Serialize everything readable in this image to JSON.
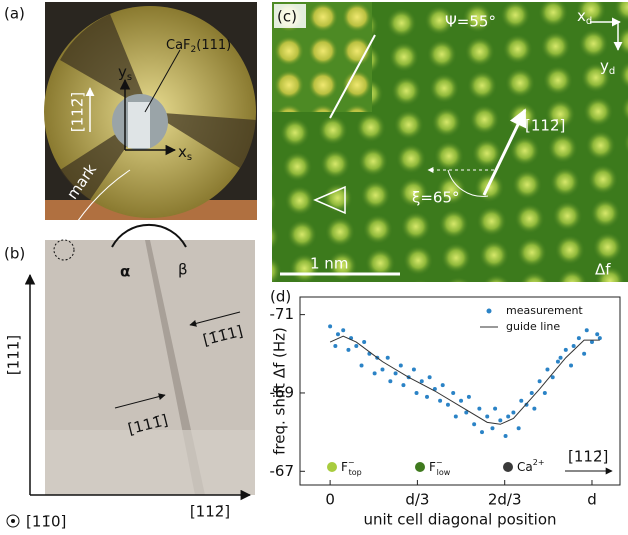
{
  "panel_a": {
    "label": "(a)",
    "sample": {
      "main": "CaF",
      "sub": "2",
      "rest": "(111)"
    },
    "y_axis": {
      "main": "y",
      "sub": "s"
    },
    "x_axis": {
      "main": "x",
      "sub": "s"
    },
    "direction": "[112̄]",
    "mark": "mark"
  },
  "panel_b": {
    "label": "(b)",
    "angle_alpha": "α",
    "angle_beta": "β",
    "edge_upper": "[1̄1̄1]",
    "edge_lower": "[111̄]",
    "axis_vertical": "[111]",
    "axis_horizontal": "[112̄]",
    "axis_out_of_plane": "[11̄0]"
  },
  "panel_c": {
    "label": "(c)",
    "psi": "Ψ=55°",
    "x_axis": {
      "main": "x",
      "sub": "d"
    },
    "y_axis": {
      "main": "y",
      "sub": "d"
    },
    "direction": "[112̄]",
    "xi": "ξ=65°",
    "scale_bar": "1 nm",
    "channel": "Δf"
  },
  "chart_data": {
    "type": "scatter",
    "panel_label": "(d)",
    "xlabel": "unit cell diagonal position",
    "ylabel": "freq. shift Δf (Hz)",
    "xlim": [
      -0.115,
      1.107
    ],
    "ylim": [
      -71.45,
      -66.65
    ],
    "invert_y": true,
    "xticks": [
      0,
      {
        "value": 0.3333,
        "label": "d/3"
      },
      {
        "value": 0.6667,
        "label": "2d/3"
      },
      {
        "value": 1,
        "label": "d"
      }
    ],
    "yticks": [
      -71,
      -69,
      -67
    ],
    "legend": "upper right",
    "series": [
      {
        "name": "measurement",
        "color": "#2b83c6",
        "type": "scatter",
        "x": [
          0,
          0.02,
          0.03,
          0.05,
          0.07,
          0.08,
          0.1,
          0.12,
          0.13,
          0.15,
          0.17,
          0.18,
          0.2,
          0.22,
          0.23,
          0.25,
          0.27,
          0.28,
          0.3,
          0.32,
          0.33,
          0.35,
          0.37,
          0.38,
          0.4,
          0.42,
          0.43,
          0.45,
          0.47,
          0.48,
          0.5,
          0.52,
          0.53,
          0.55,
          0.57,
          0.58,
          0.6,
          0.62,
          0.63,
          0.65,
          0.67,
          0.68,
          0.7,
          0.72,
          0.73,
          0.75,
          0.77,
          0.78,
          0.8,
          0.82,
          0.83,
          0.85,
          0.87,
          0.88,
          0.9,
          0.92,
          0.93,
          0.95,
          0.97,
          0.98,
          1.0,
          1.02,
          1.03
        ],
        "values": [
          -70.7,
          -70.2,
          -70.5,
          -70.6,
          -70.1,
          -70.4,
          -70.2,
          -69.7,
          -70.3,
          -70.0,
          -69.5,
          -69.9,
          -69.6,
          -69.9,
          -69.3,
          -69.5,
          -69.7,
          -69.2,
          -69.4,
          -69.6,
          -69.0,
          -69.3,
          -68.9,
          -69.4,
          -69.1,
          -68.8,
          -69.2,
          -68.7,
          -69.0,
          -68.4,
          -68.8,
          -68.5,
          -68.9,
          -68.2,
          -68.6,
          -68.0,
          -68.4,
          -68.1,
          -68.6,
          -68.3,
          -67.9,
          -68.4,
          -68.5,
          -68.1,
          -68.8,
          -68.7,
          -69.0,
          -68.6,
          -69.3,
          -69.0,
          -69.6,
          -69.4,
          -69.8,
          -69.9,
          -70.1,
          -69.7,
          -70.2,
          -70.4,
          -70.0,
          -70.6,
          -70.3,
          -70.5,
          -70.4
        ]
      },
      {
        "name": "guide line",
        "color": "#333333",
        "type": "line",
        "x": [
          0,
          0.05,
          0.1,
          0.2,
          0.3,
          0.4,
          0.5,
          0.6,
          0.65,
          0.7,
          0.8,
          0.9,
          0.97,
          1.03
        ],
        "values": [
          -70.3,
          -70.45,
          -70.3,
          -69.8,
          -69.4,
          -69.05,
          -68.65,
          -68.25,
          -68.2,
          -68.35,
          -69.1,
          -69.9,
          -70.35,
          -70.35
        ]
      }
    ],
    "species": [
      {
        "main": "F",
        "sup": "−",
        "sub": "top",
        "color": "#a8cc3e"
      },
      {
        "main": "F",
        "sup": "−",
        "sub": "low",
        "color": "#3f7a1e"
      },
      {
        "main": "Ca",
        "sup": "2+",
        "sub": "",
        "color": "#3a3a3a"
      }
    ],
    "direction": "[112̄]"
  }
}
